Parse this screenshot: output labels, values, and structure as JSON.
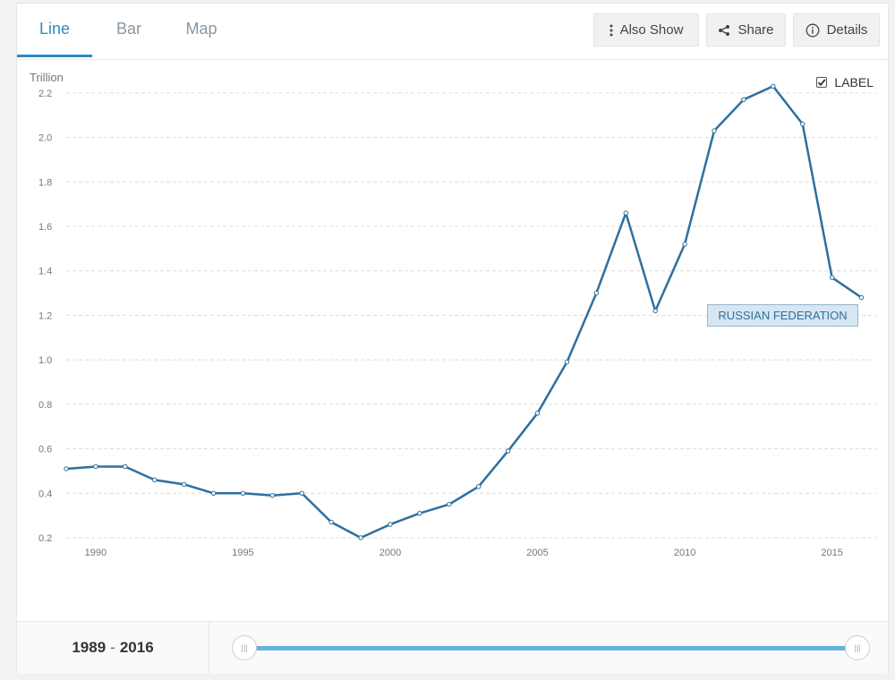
{
  "tabs": [
    {
      "label": "Line",
      "active": true
    },
    {
      "label": "Bar",
      "active": false
    },
    {
      "label": "Map",
      "active": false
    }
  ],
  "toolbar": {
    "also_show": "Also Show",
    "share": "Share",
    "details": "Details"
  },
  "label_toggle": {
    "text": "LABEL",
    "checked": true
  },
  "footer": {
    "range_start": "1989",
    "range_sep": "-",
    "range_end": "2016"
  },
  "colors": {
    "line": "#2e6f9e",
    "accent": "#2f8ac5",
    "slider": "#66b3de",
    "callout_bg": "#d7e7f2"
  },
  "chart_data": {
    "type": "line",
    "ylabel": "Trillion",
    "series_label": "RUSSIAN FEDERATION",
    "ylim": [
      0.2,
      2.3
    ],
    "xlim": [
      1989,
      2016.5
    ],
    "yticks": [
      0.2,
      0.4,
      0.6,
      0.8,
      1.0,
      1.2,
      1.4,
      1.6,
      1.8,
      2.0,
      2.2
    ],
    "ytick_labels": [
      "0.2",
      "0.4",
      "0.6",
      "0.8",
      "1.0",
      "1.2",
      "1.4",
      "1.6",
      "1.8",
      "2.0",
      "2.2"
    ],
    "xticks": [
      1990,
      1995,
      2000,
      2005,
      2010,
      2015
    ],
    "xtick_labels": [
      "1990",
      "1995",
      "2000",
      "2005",
      "2010",
      "2015"
    ],
    "grid": true,
    "x": [
      1989,
      1990,
      1991,
      1992,
      1993,
      1994,
      1995,
      1996,
      1997,
      1998,
      1999,
      2000,
      2001,
      2002,
      2003,
      2004,
      2005,
      2006,
      2007,
      2008,
      2009,
      2010,
      2011,
      2012,
      2013,
      2014,
      2015,
      2016
    ],
    "series": [
      {
        "values": [
          0.51,
          0.52,
          0.52,
          0.46,
          0.44,
          0.4,
          0.4,
          0.39,
          0.4,
          0.27,
          0.2,
          0.26,
          0.31,
          0.35,
          0.43,
          0.59,
          0.76,
          0.99,
          1.3,
          1.66,
          1.22,
          1.52,
          2.03,
          2.17,
          2.23,
          2.06,
          1.37,
          1.28
        ]
      }
    ]
  }
}
